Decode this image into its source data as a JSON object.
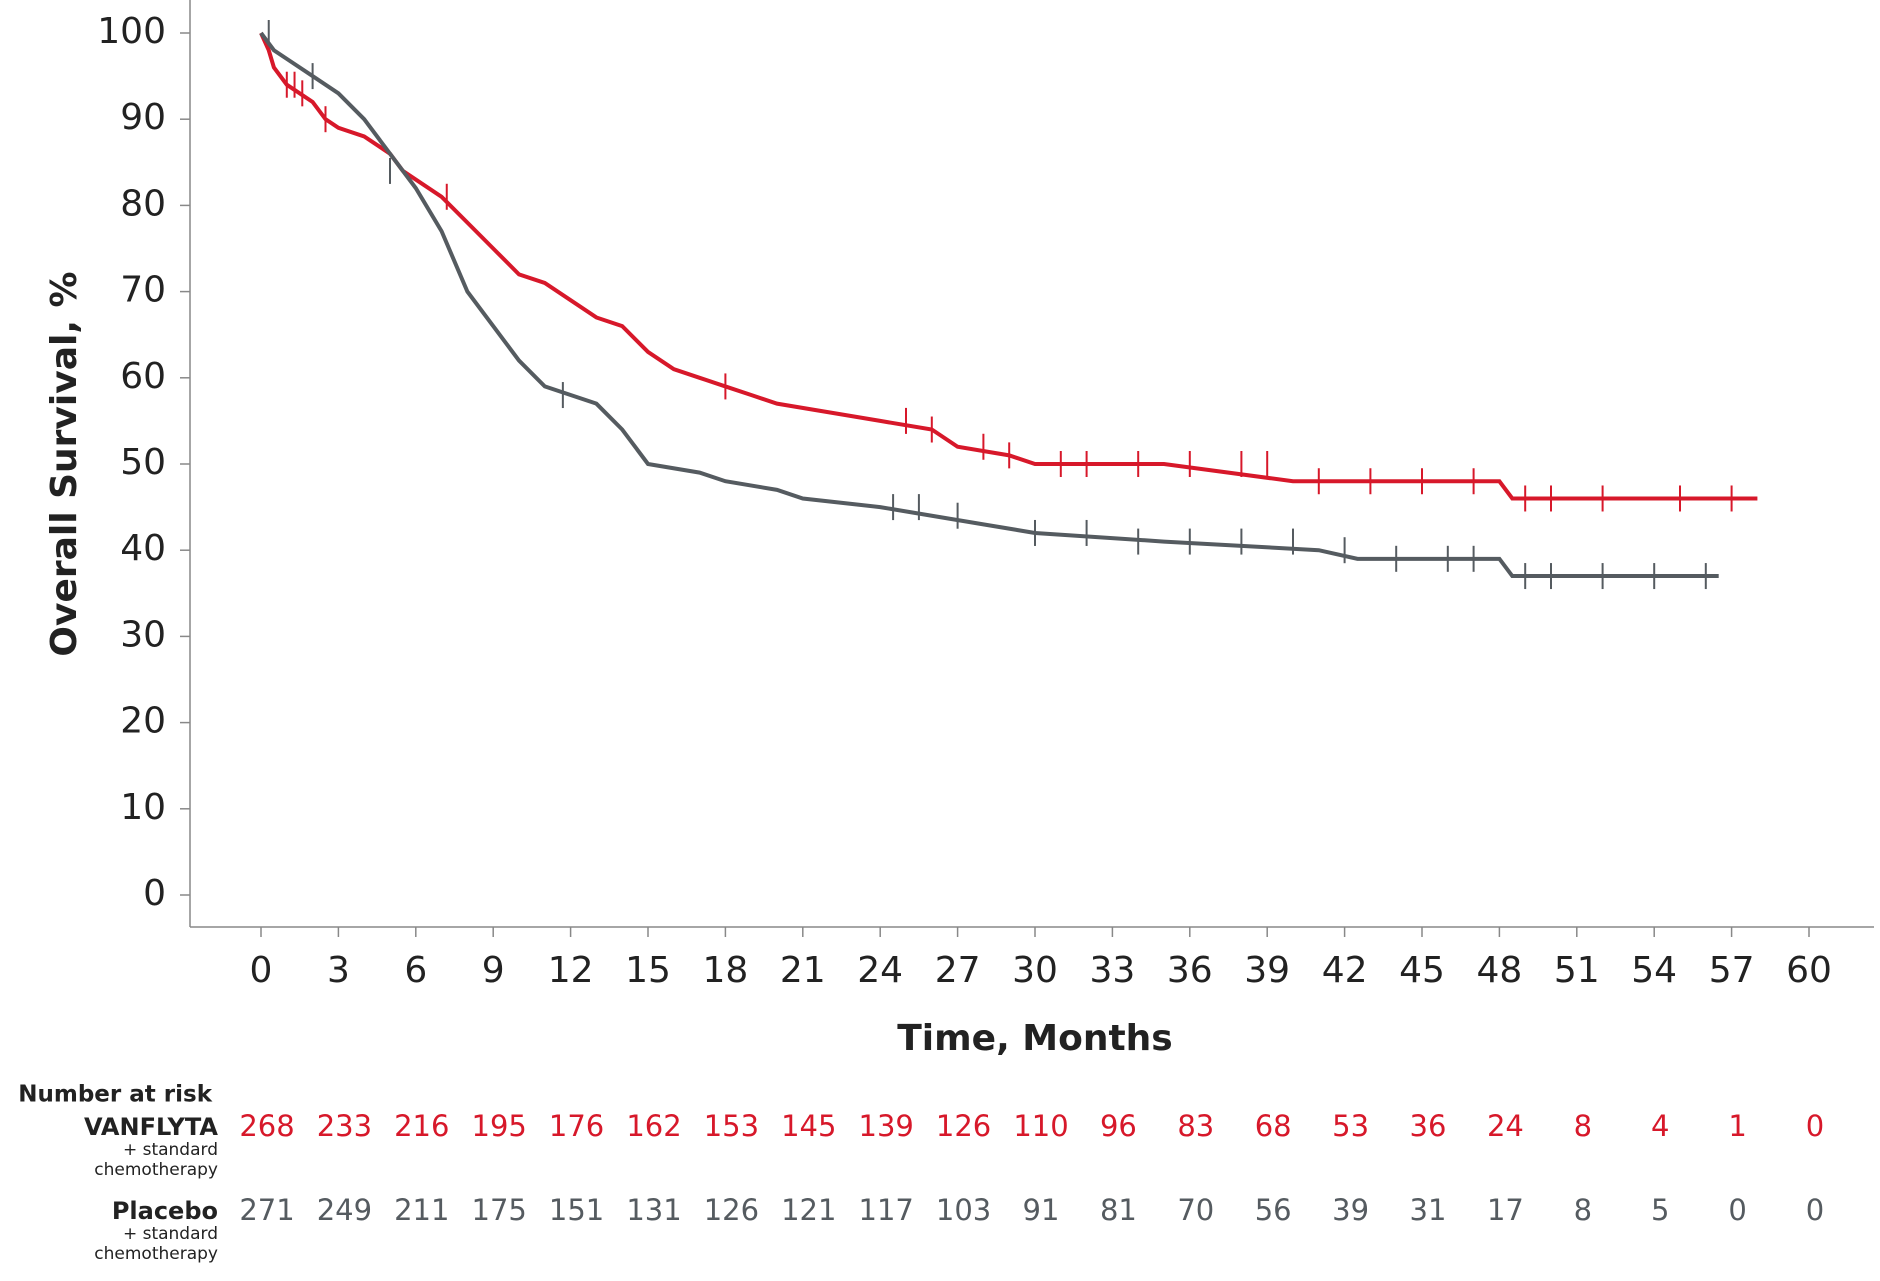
{
  "chart_data": {
    "type": "km",
    "x_label": "Time, Months",
    "y_label": "Overall Survival, %",
    "xlim": [
      0,
      60
    ],
    "ylim": [
      0,
      100
    ],
    "xticks": [
      0,
      3,
      6,
      9,
      12,
      15,
      18,
      21,
      24,
      27,
      30,
      33,
      36,
      39,
      42,
      45,
      48,
      51,
      54,
      57,
      60
    ],
    "yticks": [
      0,
      10,
      20,
      30,
      40,
      50,
      60,
      70,
      80,
      90,
      100
    ],
    "series": [
      {
        "name": "VANFLYTA",
        "subname": "+ standard chemotherapy",
        "color": "#d7182a",
        "x": [
          0,
          0.3,
          0.5,
          1,
          2,
          2.5,
          3,
          4,
          5,
          5.5,
          6,
          7,
          8,
          9,
          10,
          11,
          12,
          13,
          14,
          15,
          16,
          17,
          18,
          19,
          20,
          22,
          24,
          26,
          27,
          29,
          30,
          35,
          40,
          48,
          48.5,
          58
        ],
        "values": [
          100,
          98,
          96,
          94,
          92,
          90,
          89,
          88,
          86,
          84,
          83,
          81,
          78,
          75,
          72,
          71,
          69,
          67,
          66,
          63,
          61,
          60,
          59,
          58,
          57,
          56,
          55,
          54,
          52,
          51,
          50,
          50,
          48,
          48,
          46,
          46
        ],
        "censored_x": [
          1,
          1.3,
          1.6,
          2.5,
          7.2,
          18,
          25,
          26,
          28,
          29,
          31,
          32,
          34,
          36,
          38,
          39,
          41,
          43,
          45,
          47,
          49,
          50,
          52,
          55,
          57
        ],
        "censored_values": [
          94,
          94,
          93,
          90,
          81,
          59,
          55,
          54,
          52,
          51,
          50,
          50,
          50,
          50,
          50,
          50,
          48,
          48,
          48,
          48,
          46,
          46,
          46,
          46,
          46
        ],
        "at_risk": [
          268,
          233,
          216,
          195,
          176,
          162,
          153,
          145,
          139,
          126,
          110,
          96,
          83,
          68,
          53,
          36,
          24,
          8,
          4,
          1,
          0
        ]
      },
      {
        "name": "Placebo",
        "subname": "+ standard chemotherapy",
        "color": "#555b60",
        "x": [
          0,
          0.5,
          1,
          2,
          3,
          4,
          5,
          6,
          7,
          8,
          9,
          10,
          11,
          12,
          13,
          14,
          15,
          17,
          18,
          20,
          21,
          24,
          26,
          28,
          30,
          35,
          41,
          42.5,
          48,
          48.5,
          56.5
        ],
        "values": [
          100,
          98,
          97,
          95,
          93,
          90,
          86,
          82,
          77,
          70,
          66,
          62,
          59,
          58,
          57,
          54,
          50,
          49,
          48,
          47,
          46,
          45,
          44,
          43,
          42,
          41,
          40,
          39,
          39,
          37,
          37
        ],
        "censored_x": [
          0.3,
          2,
          5,
          11.7,
          24.5,
          25.5,
          27,
          30,
          32,
          34,
          36,
          38,
          40,
          42,
          44,
          46,
          47,
          49,
          50,
          52,
          54,
          56
        ],
        "censored_values": [
          100,
          95,
          84,
          58,
          45,
          45,
          44,
          42,
          42,
          41,
          41,
          41,
          41,
          40,
          39,
          39,
          39,
          37,
          37,
          37,
          37,
          37
        ],
        "at_risk": [
          271,
          249,
          211,
          175,
          151,
          131,
          126,
          121,
          117,
          103,
          91,
          81,
          70,
          56,
          39,
          31,
          17,
          8,
          5,
          0,
          0
        ]
      }
    ],
    "at_risk_title": "Number at risk"
  }
}
